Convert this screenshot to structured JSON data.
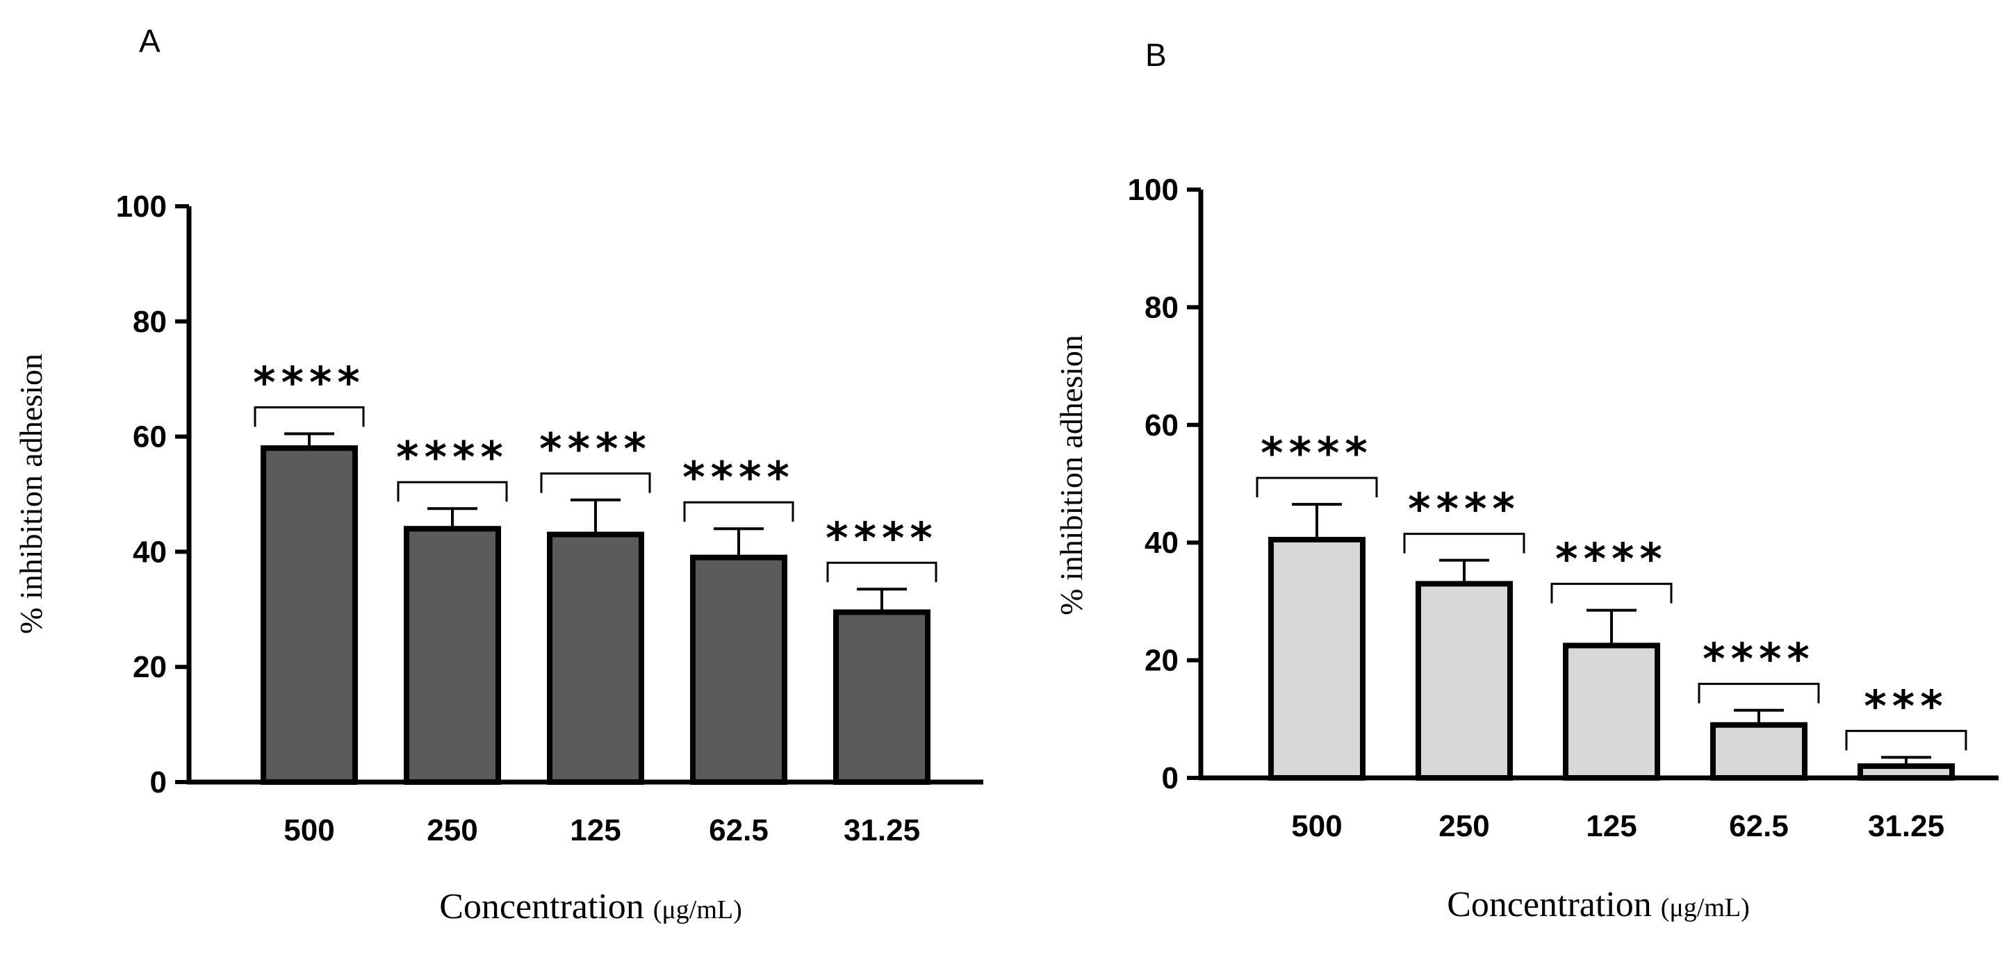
{
  "chart_data": [
    {
      "panel": "A",
      "type": "bar",
      "categories": [
        "500",
        "250",
        "125",
        "62.5",
        "31.25"
      ],
      "values": [
        58,
        44,
        43,
        39,
        29.5
      ],
      "errors": [
        2.5,
        3.5,
        6,
        5,
        4
      ],
      "significance": [
        "****",
        "****",
        "****",
        "****",
        "****"
      ],
      "bar_color": "#5a5a5a",
      "ylabel": "% inhibition adhesion",
      "xlabel": "Concentration",
      "xunit": "(μg/mL)",
      "ylim": [
        0,
        100
      ],
      "yticks": [
        0,
        20,
        40,
        60,
        80,
        100
      ]
    },
    {
      "panel": "B",
      "type": "bar",
      "categories": [
        "500",
        "250",
        "125",
        "62.5",
        "31.25"
      ],
      "values": [
        40.5,
        33,
        22.5,
        9,
        2
      ],
      "errors": [
        6,
        4,
        6,
        2.5,
        1.5
      ],
      "significance": [
        "****",
        "****",
        "****",
        "****",
        "***"
      ],
      "bar_color": "#d8d8d8",
      "ylabel": "% inhibition adhesion",
      "xlabel": "Concentration",
      "xunit": "(μg/mL)",
      "ylim": [
        0,
        100
      ],
      "yticks": [
        0,
        20,
        40,
        60,
        80,
        100
      ]
    }
  ]
}
